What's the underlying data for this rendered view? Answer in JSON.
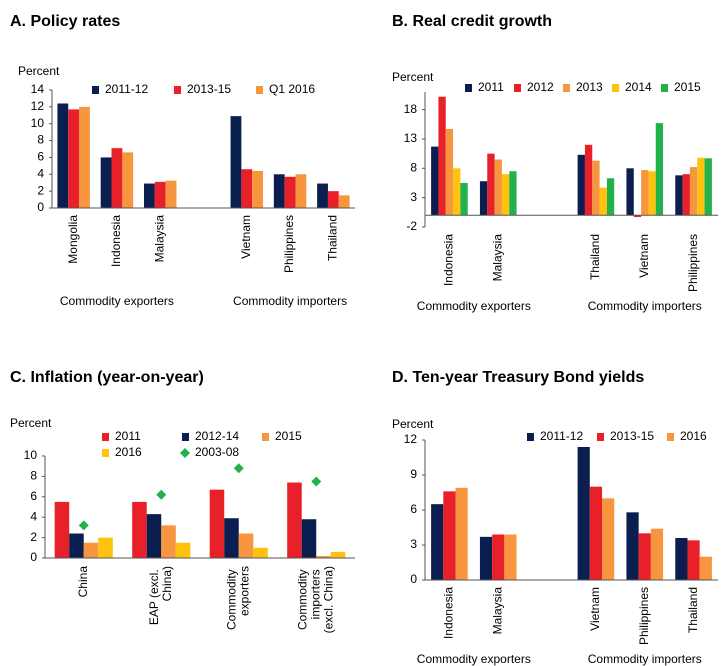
{
  "chart_data": [
    {
      "type": "bar",
      "title": "A. Policy rates",
      "ylabel": "Percent",
      "categories": [
        "Mongolia",
        "Indonesia",
        "Malaysia",
        null,
        "Vietnam",
        "Philippines",
        "Thailand"
      ],
      "group_labels": [
        "Commodity exporters",
        "Commodity importers"
      ],
      "series": [
        {
          "name": "2011-12",
          "color": "#0a1f4f",
          "values": [
            12.4,
            6.0,
            2.9,
            null,
            10.9,
            4.0,
            2.9
          ]
        },
        {
          "name": "2013-15",
          "color": "#e8202a",
          "values": [
            11.7,
            7.1,
            3.1,
            null,
            4.6,
            3.7,
            2.0
          ]
        },
        {
          "name": "Q1 2016",
          "color": "#f7963f",
          "values": [
            12.0,
            6.6,
            3.25,
            null,
            4.4,
            4.0,
            1.5
          ]
        }
      ],
      "ylim": [
        0,
        14
      ],
      "yticks": [
        0,
        2,
        4,
        6,
        8,
        10,
        12,
        14
      ]
    },
    {
      "type": "bar",
      "title": "B. Real credit growth",
      "ylabel": "Percent",
      "categories": [
        "Indonesia",
        "Malaysia",
        null,
        "Thailand",
        "Vietnam",
        "Philippines"
      ],
      "group_labels": [
        "Commodity exporters",
        "Commodity importers"
      ],
      "series": [
        {
          "name": "2011",
          "color": "#0a1f4f",
          "values": [
            11.7,
            5.8,
            null,
            10.3,
            8.0,
            6.8
          ]
        },
        {
          "name": "2012",
          "color": "#e8202a",
          "values": [
            20.2,
            10.5,
            null,
            12.0,
            -0.3,
            7.0
          ]
        },
        {
          "name": "2013",
          "color": "#f7963f",
          "values": [
            14.7,
            9.5,
            null,
            9.3,
            7.7,
            8.2
          ]
        },
        {
          "name": "2014",
          "color": "#ffc20e",
          "values": [
            8.0,
            7.0,
            null,
            4.7,
            7.5,
            9.8
          ]
        },
        {
          "name": "2015",
          "color": "#22b14c",
          "values": [
            5.5,
            7.5,
            null,
            6.3,
            15.7,
            9.7
          ]
        }
      ],
      "ylim": [
        -2,
        21
      ],
      "yticks": [
        -2,
        3,
        8,
        13,
        18
      ]
    },
    {
      "type": "bar",
      "title": "C. Inflation (year-on-year)",
      "ylabel": "Percent",
      "categories": [
        "China",
        "EAP (excl. China)",
        "Commodity exporters",
        "Commodity importers (excl. China)"
      ],
      "series": [
        {
          "name": "2011",
          "color": "#e8202a",
          "values": [
            5.5,
            5.5,
            6.7,
            7.4
          ]
        },
        {
          "name": "2012-14",
          "color": "#0a1f4f",
          "values": [
            2.4,
            4.3,
            3.9,
            3.8
          ]
        },
        {
          "name": "2015",
          "color": "#f7963f",
          "values": [
            1.5,
            3.2,
            2.4,
            0.2
          ]
        },
        {
          "name": "2016",
          "color": "#ffc20e",
          "values": [
            2.0,
            1.5,
            1.0,
            0.6
          ]
        },
        {
          "name": "2003-08",
          "color": "#22b14c",
          "style": "marker",
          "values": [
            3.2,
            6.2,
            8.8,
            7.5
          ]
        }
      ],
      "ylim": [
        0,
        10
      ],
      "yticks": [
        0,
        2,
        4,
        6,
        8,
        10
      ]
    },
    {
      "type": "bar",
      "title": "D. Ten-year Treasury Bond yields",
      "ylabel": "Percent",
      "categories": [
        "Indonesia",
        "Malaysia",
        null,
        "Vietnam",
        "Philippines",
        "Thailand"
      ],
      "group_labels": [
        "Commodity exporters",
        "Commodity importers"
      ],
      "series": [
        {
          "name": "2011-12",
          "color": "#0a1f4f",
          "values": [
            6.5,
            3.7,
            null,
            11.4,
            5.8,
            3.6
          ]
        },
        {
          "name": "2013-15",
          "color": "#e8202a",
          "values": [
            7.6,
            3.9,
            null,
            8.0,
            4.0,
            3.4
          ]
        },
        {
          "name": "2016",
          "color": "#f7963f",
          "values": [
            7.9,
            3.9,
            null,
            7.0,
            4.4,
            2.0
          ]
        }
      ],
      "ylim": [
        0,
        12
      ],
      "yticks": [
        0,
        3,
        6,
        9,
        12
      ]
    }
  ]
}
